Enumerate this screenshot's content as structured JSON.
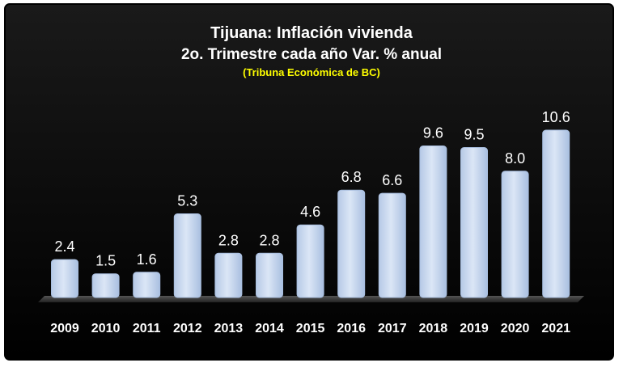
{
  "chart_data": {
    "type": "bar",
    "title": "Tijuana: Inflación vivienda",
    "subtitle": "2o. Trimestre cada año Var. % anual",
    "source_note": "(Tribuna Económica de BC)",
    "categories": [
      "2009",
      "2010",
      "2011",
      "2012",
      "2013",
      "2014",
      "2015",
      "2016",
      "2017",
      "2018",
      "2019",
      "2020",
      "2021"
    ],
    "values": [
      2.4,
      1.5,
      1.6,
      5.3,
      2.8,
      2.8,
      4.6,
      6.8,
      6.6,
      9.6,
      9.5,
      8.0,
      10.6
    ],
    "value_labels": [
      "2.4",
      "1.5",
      "1.6",
      "5.3",
      "2.8",
      "2.8",
      "4.6",
      "6.8",
      "6.6",
      "9.6",
      "9.5",
      "8.0",
      "10.6"
    ],
    "ylim": [
      0,
      10.6
    ],
    "xlabel": "",
    "ylabel": "",
    "grid": false,
    "legend": "none",
    "colors": {
      "background": "#000000",
      "frame": "#000000",
      "bar_fill": "#c5d6ee",
      "bar_stroke": "#a8bedf",
      "text": "#ffffff",
      "source_note": "#ffff00",
      "floor": "#3a3a3a"
    }
  }
}
